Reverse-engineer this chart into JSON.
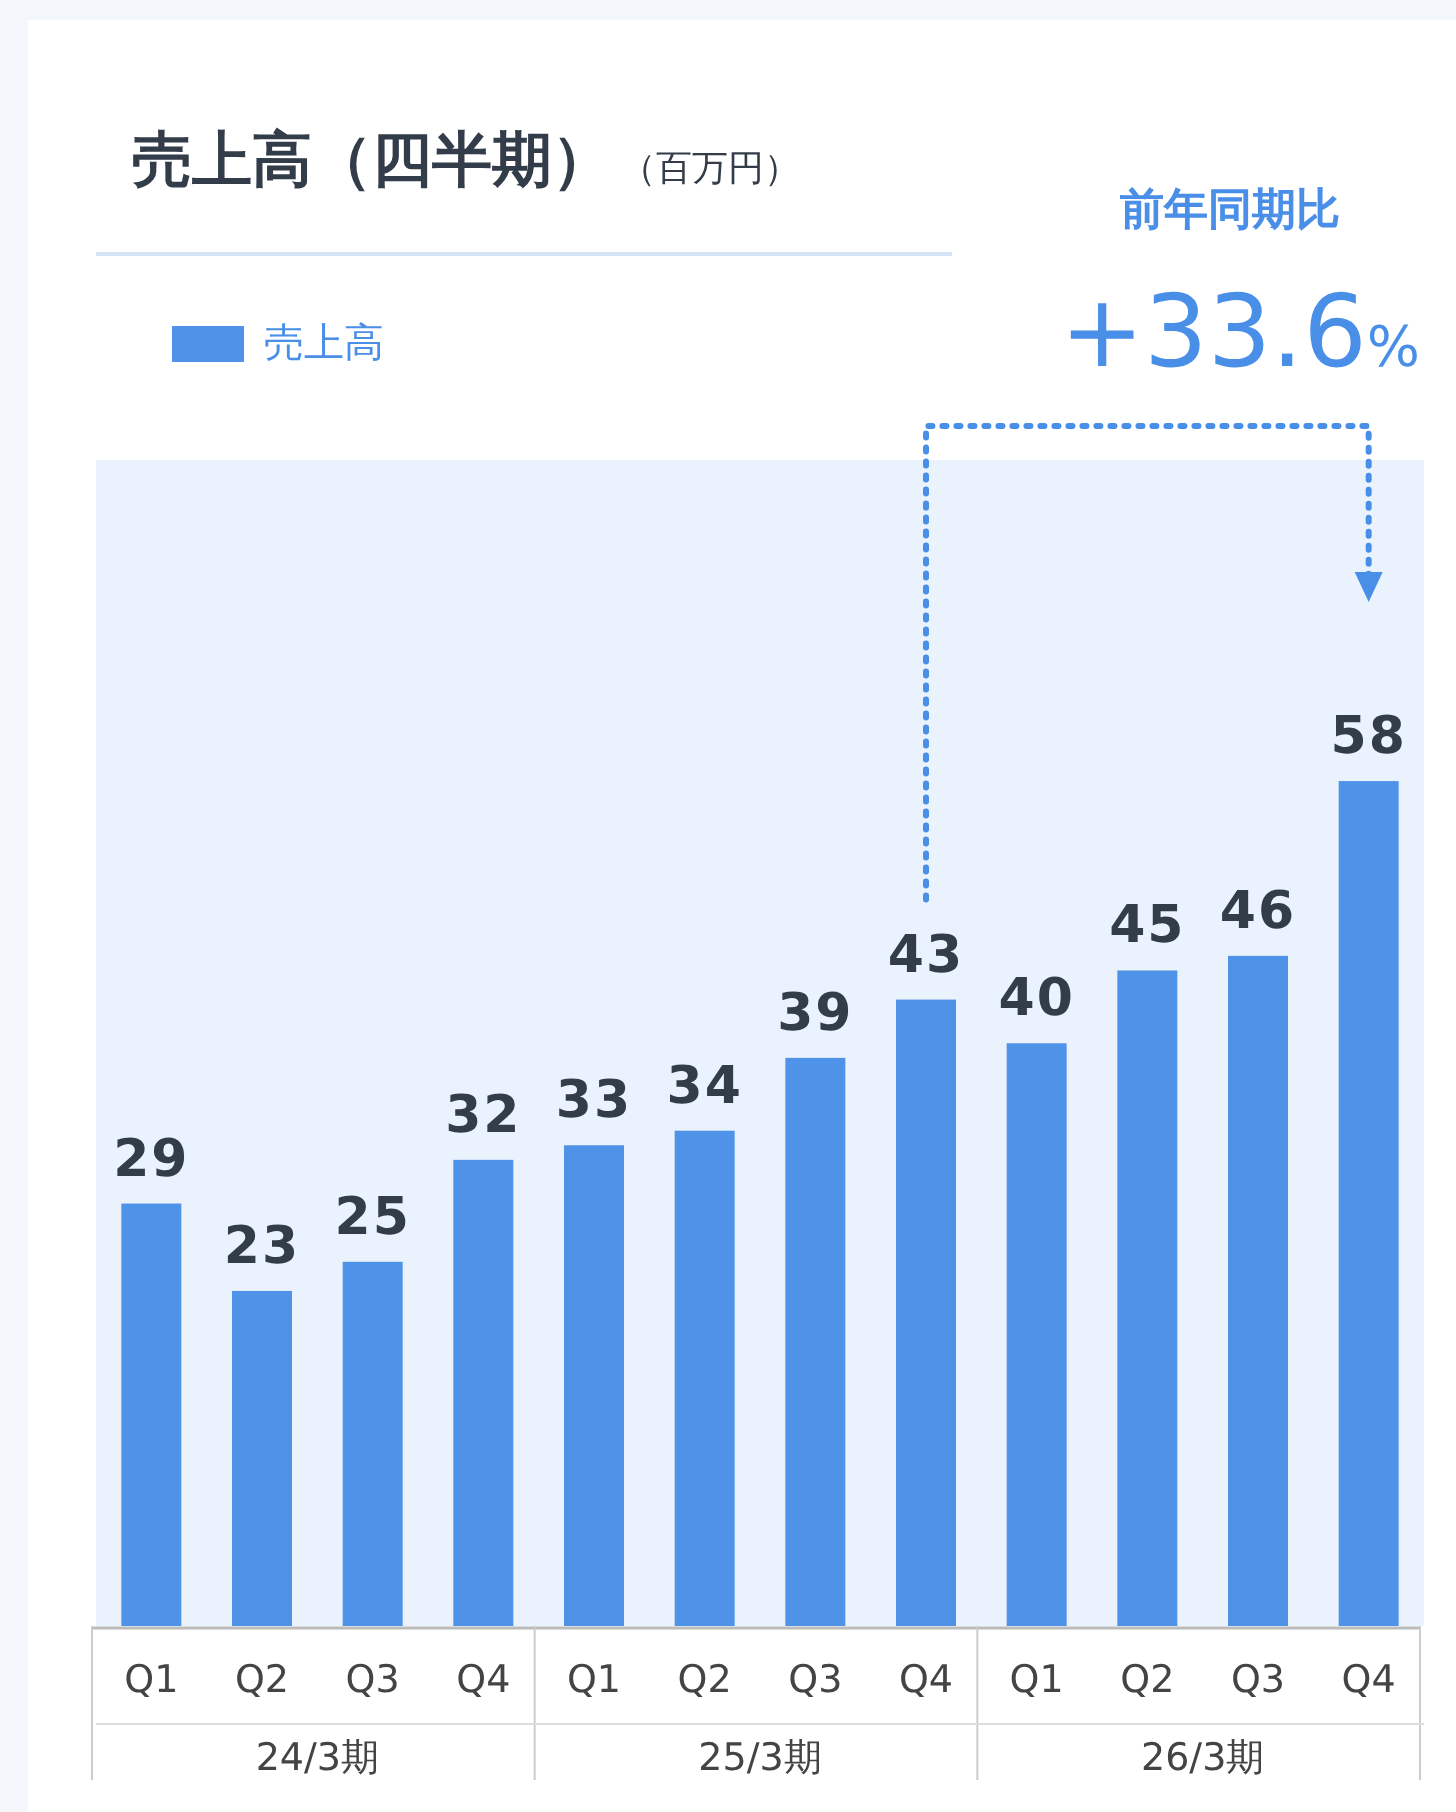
{
  "chart_data": {
    "type": "bar",
    "title": "売上高（四半期）",
    "subtitle": "（百万円）",
    "categories": [
      "Q1",
      "Q2",
      "Q3",
      "Q4",
      "Q1",
      "Q2",
      "Q3",
      "Q4",
      "Q1",
      "Q2",
      "Q3",
      "Q4"
    ],
    "series": [
      {
        "name": "売上高",
        "color": "#4f93e8",
        "values": [
          29,
          23,
          25,
          32,
          33,
          34,
          39,
          43,
          40,
          45,
          46,
          58
        ]
      }
    ],
    "data_labels": true,
    "legend": "top left",
    "annotations": [
      "24/3期",
      "25/3期",
      "26/3期",
      "前年同期比",
      "+33.6%"
    ]
  }
}
